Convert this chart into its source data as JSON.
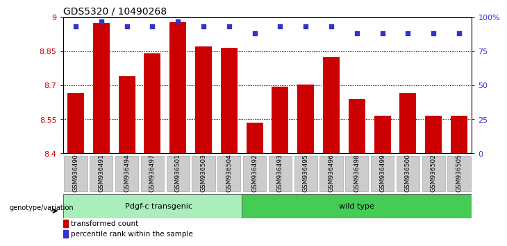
{
  "title": "GDS5320 / 10490268",
  "categories": [
    "GSM936490",
    "GSM936491",
    "GSM936494",
    "GSM936497",
    "GSM936501",
    "GSM936503",
    "GSM936504",
    "GSM936492",
    "GSM936493",
    "GSM936495",
    "GSM936496",
    "GSM936498",
    "GSM936499",
    "GSM936500",
    "GSM936502",
    "GSM936505"
  ],
  "bar_values": [
    8.665,
    8.975,
    8.74,
    8.84,
    8.978,
    8.87,
    8.865,
    8.535,
    8.693,
    8.702,
    8.825,
    8.638,
    8.565,
    8.665,
    8.565,
    8.565
  ],
  "percentile_values": [
    93,
    97,
    93,
    93,
    97,
    93,
    93,
    88,
    93,
    93,
    93,
    88,
    88,
    88,
    88,
    88
  ],
  "ylim_left": [
    8.4,
    9.0
  ],
  "ylim_right": [
    0,
    100
  ],
  "yticks_left": [
    8.4,
    8.55,
    8.7,
    8.85,
    9.0
  ],
  "ytick_labels_left": [
    "8.4",
    "8.55",
    "8.7",
    "8.85",
    "9"
  ],
  "yticks_right": [
    0,
    25,
    50,
    75,
    100
  ],
  "ytick_labels_right": [
    "0",
    "25",
    "50",
    "75",
    "100%"
  ],
  "bar_color": "#cc0000",
  "dot_color": "#3333cc",
  "bar_width": 0.65,
  "grid_color": "#000000",
  "group1_label": "Pdgf-c transgenic",
  "group2_label": "wild type",
  "group1_color": "#aaeebb",
  "group2_color": "#44cc55",
  "group1_count": 7,
  "legend_bar_label": "transformed count",
  "legend_dot_label": "percentile rank within the sample",
  "genotype_label": "genotype/variation",
  "bg_color": "#ffffff",
  "tick_label_bg": "#cccccc"
}
